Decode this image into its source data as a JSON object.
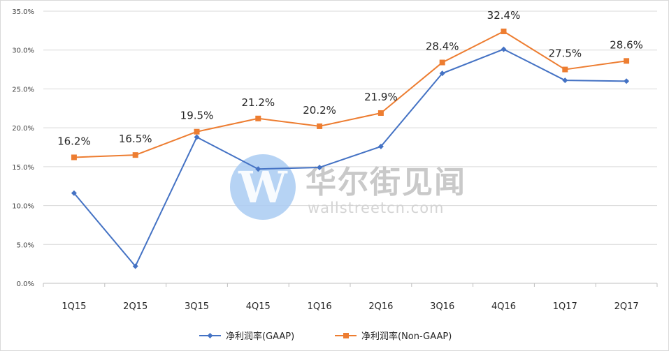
{
  "watermark": {
    "text_cn": "华尔街见闻",
    "text_en": "wallstreetcn.com",
    "logo_letter": "W"
  },
  "chart_data": {
    "type": "line",
    "categories": [
      "1Q15",
      "2Q15",
      "3Q15",
      "4Q15",
      "1Q16",
      "2Q16",
      "3Q16",
      "4Q16",
      "1Q17",
      "2Q17"
    ],
    "ylim": [
      0,
      35
    ],
    "y_ticks": [
      "0.0%",
      "5.0%",
      "10.0%",
      "15.0%",
      "20.0%",
      "25.0%",
      "30.0%",
      "35.0%"
    ],
    "grid": true,
    "legend_position": "bottom",
    "series": [
      {
        "name": "净利润率(GAAP)",
        "color": "#4472c4",
        "marker": "diamond",
        "values": [
          11.6,
          2.2,
          18.8,
          14.7,
          14.9,
          17.6,
          27.0,
          30.1,
          26.1,
          26.0
        ]
      },
      {
        "name": "净利润率(Non-GAAP)",
        "color": "#ed7d31",
        "marker": "square",
        "values": [
          16.2,
          16.5,
          19.5,
          21.2,
          20.2,
          21.9,
          28.4,
          32.4,
          27.5,
          28.6
        ],
        "data_labels": [
          "16.2%",
          "16.5%",
          "19.5%",
          "21.2%",
          "20.2%",
          "21.9%",
          "28.4%",
          "32.4%",
          "27.5%",
          "28.6%"
        ]
      }
    ]
  }
}
